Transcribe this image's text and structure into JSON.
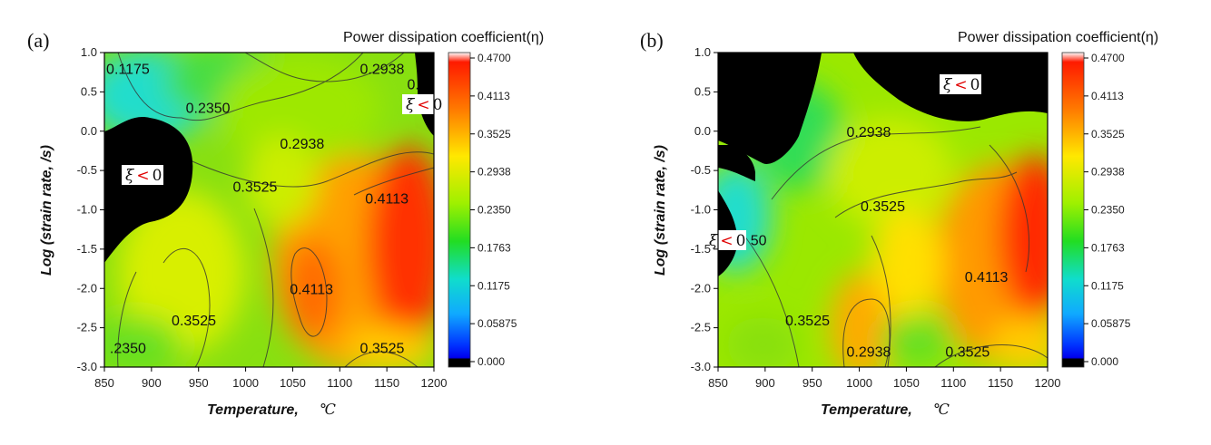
{
  "panels": [
    {
      "id": "a",
      "label": "(a)"
    },
    {
      "id": "b",
      "label": "(b)"
    }
  ],
  "colorbar": {
    "title": "Power dissipation coefficient(η)",
    "ticks": [
      "0.4700",
      "0.4113",
      "0.3525",
      "0.2938",
      "0.2350",
      "0.1763",
      "0.1175",
      "0.05875",
      "0.000"
    ],
    "colors": [
      "#ffffff",
      "#ff1a00",
      "#ff8a00",
      "#ffe800",
      "#b5f000",
      "#22dd22",
      "#10ddcc",
      "#10aaff",
      "#0055ff",
      "#0000ee",
      "#000000"
    ]
  },
  "chart_data": [
    {
      "type": "heatmap",
      "panel": "(a)",
      "title": "Power dissipation coefficient(η)",
      "xlabel": "Temperature,",
      "xunit": "℃",
      "ylabel": "Log (strain rate, /s)",
      "xlim": [
        850,
        1200
      ],
      "ylim": [
        -3.0,
        1.0
      ],
      "xticks": [
        "850",
        "900",
        "950",
        "1000",
        "1050",
        "1100",
        "1150",
        "1200"
      ],
      "yticks": [
        "1.0",
        "0.5",
        "0.0",
        "-0.5",
        "-1.0",
        "-1.5",
        "-2.0",
        "-2.5",
        "-3.0"
      ],
      "contour_labels": [
        {
          "text": "0.1175",
          "x": 875,
          "y": 0.8
        },
        {
          "text": "0.2938",
          "x": 1145,
          "y": 0.8
        },
        {
          "text": "0.",
          "x": 1178,
          "y": 0.6
        },
        {
          "text": "0.2350",
          "x": 960,
          "y": 0.3
        },
        {
          "text": "0.2938",
          "x": 1060,
          "y": -0.15
        },
        {
          "text": "0.3525",
          "x": 1010,
          "y": -0.7
        },
        {
          "text": "0.4113",
          "x": 1150,
          "y": -0.85
        },
        {
          "text": "0.4113",
          "x": 1070,
          "y": -2.0
        },
        {
          "text": "0.3525",
          "x": 945,
          "y": -2.4
        },
        {
          "text": ".2350",
          "x": 875,
          "y": -2.75
        },
        {
          "text": "0.3525",
          "x": 1145,
          "y": -2.75
        }
      ],
      "instability_labels": [
        {
          "xi": "ξ",
          "lt": "<",
          "zero": "0",
          "x": 880,
          "y": -0.55
        },
        {
          "xi": "ξ",
          "lt": "<",
          "zero": "0",
          "x": 1185,
          "y": 0.35
        }
      ]
    },
    {
      "type": "heatmap",
      "panel": "(b)",
      "title": "Power dissipation coefficient(η)",
      "xlabel": "Temperature,",
      "xunit": "℃",
      "ylabel": "Log (strain rate, /s)",
      "xlim": [
        850,
        1200
      ],
      "ylim": [
        -3.0,
        1.0
      ],
      "xticks": [
        "850",
        "900",
        "950",
        "1000",
        "1050",
        "1100",
        "1150",
        "1200"
      ],
      "yticks": [
        "1.0",
        "0.5",
        "0.0",
        "-0.5",
        "-1.0",
        "-1.5",
        "-2.0",
        "-2.5",
        "-3.0"
      ],
      "contour_labels": [
        {
          "text": "0.2938",
          "x": 1010,
          "y": 0.0
        },
        {
          "text": "0.3525",
          "x": 1025,
          "y": -0.95
        },
        {
          "text": "50",
          "x": 893,
          "y": -1.38
        },
        {
          "text": "0.4113",
          "x": 1135,
          "y": -1.85
        },
        {
          "text": "0.3525",
          "x": 945,
          "y": -2.4
        },
        {
          "text": "0.2938",
          "x": 1010,
          "y": -2.8
        },
        {
          "text": "0.3525",
          "x": 1115,
          "y": -2.8
        }
      ],
      "instability_labels": [
        {
          "xi": "ξ",
          "lt": "<",
          "zero": "0",
          "x": 1140,
          "y": 0.55
        },
        {
          "xi": "ξ",
          "lt": "<",
          "zero": "0",
          "x": 862,
          "y": -1.38
        }
      ]
    }
  ]
}
